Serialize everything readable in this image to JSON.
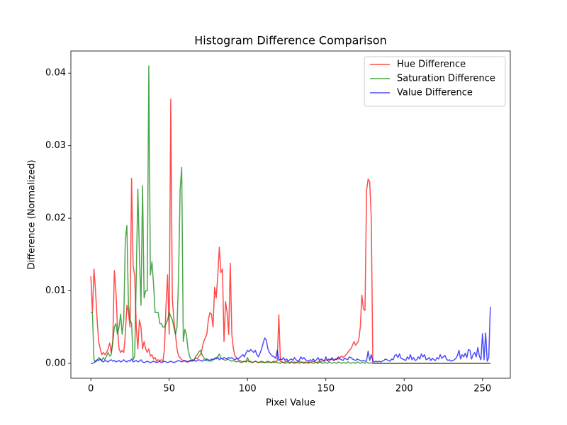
{
  "chart_data": {
    "type": "line",
    "title": "Histogram Difference Comparison",
    "xlabel": "Pixel Value",
    "ylabel": "Difference (Normalized)",
    "x": [
      0,
      1,
      2,
      3,
      4,
      5,
      6,
      7,
      8,
      9,
      10,
      11,
      12,
      13,
      14,
      15,
      16,
      17,
      18,
      19,
      20,
      21,
      22,
      23,
      24,
      25,
      26,
      27,
      28,
      29,
      30,
      31,
      32,
      33,
      34,
      35,
      36,
      37,
      38,
      39,
      40,
      41,
      42,
      43,
      44,
      45,
      46,
      47,
      48,
      49,
      50,
      51,
      52,
      53,
      54,
      55,
      56,
      57,
      58,
      59,
      60,
      61,
      62,
      63,
      64,
      65,
      66,
      67,
      68,
      69,
      70,
      71,
      72,
      73,
      74,
      75,
      76,
      77,
      78,
      79,
      80,
      81,
      82,
      83,
      84,
      85,
      86,
      87,
      88,
      89,
      90,
      91,
      92,
      93,
      94,
      95,
      96,
      97,
      98,
      99,
      100,
      101,
      102,
      103,
      104,
      105,
      106,
      107,
      108,
      109,
      110,
      111,
      112,
      113,
      114,
      115,
      116,
      117,
      118,
      119,
      120,
      121,
      122,
      123,
      124,
      125,
      126,
      127,
      128,
      129,
      130,
      131,
      132,
      133,
      134,
      135,
      136,
      137,
      138,
      139,
      140,
      141,
      142,
      143,
      144,
      145,
      146,
      147,
      148,
      149,
      150,
      151,
      152,
      153,
      154,
      155,
      156,
      157,
      158,
      159,
      160,
      161,
      162,
      163,
      164,
      165,
      166,
      167,
      168,
      169,
      170,
      171,
      172,
      173,
      174,
      175,
      176,
      177,
      178,
      179,
      180,
      181,
      182,
      183,
      184,
      185,
      186,
      187,
      188,
      189,
      190,
      191,
      192,
      193,
      194,
      195,
      196,
      197,
      198,
      199,
      200,
      201,
      202,
      203,
      204,
      205,
      206,
      207,
      208,
      209,
      210,
      211,
      212,
      213,
      214,
      215,
      216,
      217,
      218,
      219,
      220,
      221,
      222,
      223,
      224,
      225,
      226,
      227,
      228,
      229,
      230,
      231,
      232,
      233,
      234,
      235,
      236,
      237,
      238,
      239,
      240,
      241,
      242,
      243,
      244,
      245,
      246,
      247,
      248,
      249,
      250,
      251,
      252,
      253,
      254,
      255
    ],
    "series": [
      {
        "name": "Hue Difference",
        "color": "#ff0000",
        "alpha": 0.7,
        "values": [
          0.012,
          0.007,
          0.013,
          0.01,
          0.006,
          0.003,
          0.002,
          0.0012,
          0.0015,
          0.0012,
          0.0015,
          0.002,
          0.0028,
          0.0015,
          0.003,
          0.0128,
          0.01,
          0.005,
          0.002,
          0.0015,
          0.0018,
          0.0015,
          0.004,
          0.008,
          0.007,
          0.005,
          0.0255,
          0.0135,
          0.012,
          0.005,
          0.002,
          0.006,
          0.005,
          0.002,
          0.003,
          0.002,
          0.0015,
          0.002,
          0.001,
          0.0012,
          0.0006,
          0.0008,
          0.0003,
          0.0005,
          0.0004,
          0.0005,
          0.0003,
          0.002,
          0.008,
          0.0122,
          0.004,
          0.0364,
          0.009,
          0.006,
          0.004,
          0.002,
          0.001,
          0.0008,
          0.0005,
          0.0004,
          0.0003,
          0.0002,
          0.0002,
          0.0003,
          0.0004,
          0.0003,
          0.0005,
          0.0008,
          0.0006,
          0.001,
          0.0012,
          0.002,
          0.003,
          0.0035,
          0.004,
          0.006,
          0.007,
          0.0068,
          0.005,
          0.0105,
          0.009,
          0.012,
          0.016,
          0.0125,
          0.013,
          0.003,
          0.0085,
          0.007,
          0.004,
          0.0138,
          0.004,
          0.002,
          0.001,
          0.0008,
          0.0005,
          0.0004,
          0.0003,
          0.0002,
          0.0003,
          0.0002,
          0.0004,
          0.0002,
          0.0003,
          0.0001,
          0.0002,
          0.0003,
          0.0002,
          0.0001,
          0.0002,
          0.0003,
          0.0002,
          0.0001,
          0.0002,
          0.0003,
          0.0002,
          0.0001,
          0.0002,
          0.0003,
          0.0002,
          0.0004,
          0.0067,
          0.0003,
          0.0002,
          0.0001,
          0.0002,
          0.0003,
          0.0002,
          0.0001,
          0.0002,
          0.0001,
          0.0002,
          0.0001,
          0.0002,
          0.0003,
          0.0001,
          0.0002,
          0.0001,
          0.0002,
          0.0001,
          0.0002,
          0.0001,
          0.0002,
          0.0003,
          0.0002,
          0.0001,
          0.0002,
          0.0003,
          0.0002,
          0.0004,
          0.0003,
          0.0005,
          0.0004,
          0.0003,
          0.0005,
          0.0006,
          0.0004,
          0.0005,
          0.0007,
          0.0006,
          0.0008,
          0.001,
          0.0008,
          0.001,
          0.0012,
          0.0015,
          0.0018,
          0.002,
          0.0025,
          0.003,
          0.0025,
          0.0028,
          0.0032,
          0.005,
          0.0094,
          0.0075,
          0.0073,
          0.0238,
          0.0254,
          0.025,
          0.02,
          0,
          0,
          0,
          0,
          0,
          0,
          0,
          0,
          0,
          0,
          0,
          0,
          0,
          0,
          0,
          0,
          0,
          0,
          0,
          0,
          0,
          0,
          0,
          0,
          0,
          0,
          0,
          0,
          0,
          0,
          0,
          0,
          0,
          0,
          0,
          0,
          0,
          0,
          0,
          0,
          0,
          0,
          0,
          0,
          0,
          0,
          0,
          0,
          0,
          0,
          0,
          0,
          0,
          0,
          0,
          0,
          0,
          0,
          0,
          0,
          0,
          0,
          0,
          0,
          0,
          0,
          0,
          0,
          0,
          0,
          0,
          0,
          0,
          0,
          0,
          0
        ]
      },
      {
        "name": "Saturation Difference",
        "color": "#008000",
        "alpha": 0.7,
        "values": [
          0.007,
          0.007,
          0.0005,
          0.0002,
          0.0004,
          0.0008,
          0.0006,
          0.0004,
          0.0008,
          0.0005,
          0.001,
          0.0015,
          0.001,
          0.0012,
          0.003,
          0.005,
          0.0055,
          0.004,
          0.005,
          0.0068,
          0.004,
          0.006,
          0.017,
          0.019,
          0.008,
          0.006,
          0.0055,
          0.0005,
          0.001,
          0.012,
          0.024,
          0.015,
          0.008,
          0.0245,
          0.009,
          0.01,
          0.01,
          0.041,
          0.0122,
          0.014,
          0.011,
          0.007,
          0.007,
          0.007,
          0.0055,
          0.0055,
          0.005,
          0.005,
          0.0055,
          0.006,
          0.007,
          0.0065,
          0.006,
          0.005,
          0.004,
          0.005,
          0.012,
          0.024,
          0.027,
          0.003,
          0.0047,
          0.004,
          0.002,
          0.001,
          0.0005,
          0.0004,
          0.0005,
          0.001,
          0.0012,
          0.0016,
          0.0018,
          0.0012,
          0.0008,
          0.0006,
          0.0004,
          0.0003,
          0.0004,
          0.0003,
          0.0005,
          0.0006,
          0.0008,
          0.0009,
          0.0013,
          0.0007,
          0.0006,
          0.0005,
          0.0004,
          0.0006,
          0.0005,
          0.0004,
          0.0003,
          0.0004,
          0.0003,
          0.0002,
          0.0003,
          0.0002,
          0.0001,
          0.0002,
          0.0003,
          0.0002,
          0.0008,
          0.0003,
          0.0002,
          0.0001,
          0.0002,
          0.0003,
          0.0002,
          0.0001,
          0.0002,
          0.0001,
          0.0002,
          0.0001,
          0.0002,
          0.0001,
          0.0002,
          0.0001,
          0.0002,
          0.0001,
          0.0002,
          0.0001,
          0.0001,
          0,
          0.0002,
          0.0001,
          0,
          0.0001,
          0.0001,
          0,
          0.0002,
          0.0001,
          0,
          0.0001,
          0.0001,
          0,
          0.0002,
          0.0001,
          0,
          0.0001,
          0.0001,
          0,
          0.0002,
          0.0001,
          0,
          0.0001,
          0.0001,
          0,
          0.0002,
          0.0001,
          0,
          0.0001,
          0.0001,
          0,
          0.0002,
          0.0001,
          0,
          0.0001,
          0.0001,
          0,
          0.0002,
          0.0001,
          0,
          0.0001,
          0.0001,
          0,
          0.0002,
          0.0001,
          0,
          0.0001,
          0.0001,
          0,
          0.0002,
          0.0001,
          0,
          0.0001,
          0.0001,
          0,
          0.0002,
          0.0001,
          0,
          0.0001,
          0,
          0,
          0,
          0,
          0,
          0,
          0,
          0,
          0,
          0,
          0,
          0,
          0,
          0,
          0,
          0,
          0,
          0,
          0,
          0,
          0,
          0,
          0,
          0,
          0,
          0,
          0,
          0,
          0,
          0,
          0,
          0,
          0,
          0,
          0,
          0,
          0,
          0,
          0,
          0,
          0,
          0,
          0,
          0,
          0,
          0,
          0,
          0,
          0,
          0,
          0,
          0,
          0,
          0,
          0,
          0,
          0,
          0,
          0,
          0,
          0,
          0,
          0,
          0,
          0,
          0,
          0,
          0,
          0,
          0,
          0,
          0,
          0,
          0,
          0,
          0
        ]
      },
      {
        "name": "Value Difference",
        "color": "#0000ff",
        "alpha": 0.7,
        "values": [
          0,
          0,
          0.0001,
          0.0003,
          0.0005,
          0.0004,
          0.0006,
          0.0003,
          0.0002,
          0.0004,
          0.0003,
          0.0002,
          0.0004,
          0.0005,
          0.0003,
          0.0004,
          0.0002,
          0.0003,
          0.0004,
          0.0002,
          0.0003,
          0.0005,
          0.0003,
          0.0002,
          0.0004,
          0.0003,
          0.0006,
          0.0002,
          0.0003,
          0.0004,
          0.0002,
          0.0003,
          0.0005,
          0.0002,
          0.0001,
          0.0002,
          0.0003,
          0.0002,
          0.0001,
          0.0002,
          0.0003,
          0.0002,
          0.0001,
          0.0002,
          0.0003,
          0.0001,
          0.0002,
          0.0003,
          0.0002,
          0.0001,
          0.0002,
          0.0003,
          0.0002,
          0.0001,
          0.0002,
          0.0003,
          0.0004,
          0.0003,
          0.0002,
          0.0003,
          0.0004,
          0.0003,
          0.0002,
          0.0004,
          0.0003,
          0.0005,
          0.0004,
          0.0003,
          0.0004,
          0.0005,
          0.0004,
          0.0003,
          0.0005,
          0.0004,
          0.0006,
          0.0005,
          0.0004,
          0.0006,
          0.0005,
          0.0007,
          0.0006,
          0.0008,
          0.0005,
          0.0007,
          0.0006,
          0.0008,
          0.0007,
          0.0006,
          0.0008,
          0.0007,
          0.0008,
          0.0006,
          0.0005,
          0.0007,
          0.0006,
          0.0008,
          0.001,
          0.0012,
          0.0009,
          0.0014,
          0.0018,
          0.0016,
          0.0019,
          0.0017,
          0.0015,
          0.0018,
          0.0012,
          0.0009,
          0.0014,
          0.002,
          0.0028,
          0.0035,
          0.0032,
          0.002,
          0.0015,
          0.0012,
          0.001,
          0.0009,
          0.0007,
          0.0018,
          0.0004,
          0.0006,
          0.0005,
          0.0008,
          0.0004,
          0.0006,
          0.0003,
          0.0005,
          0.0006,
          0.0004,
          0.0008,
          0.0005,
          0.0003,
          0.0004,
          0.0009,
          0.0006,
          0.0008,
          0.0005,
          0.0004,
          0.0003,
          0.0005,
          0.0004,
          0.0006,
          0.0003,
          0.0005,
          0.0008,
          0.0004,
          0.0006,
          0.0005,
          0.0003,
          0.0009,
          0.0004,
          0.0006,
          0.0005,
          0.0008,
          0.0004,
          0.0006,
          0.0005,
          0.0009,
          0.0006,
          0.0005,
          0.0004,
          0.0007,
          0.0006,
          0.0005,
          0.0009,
          0.0008,
          0.0006,
          0.0005,
          0.0004,
          0.0006,
          0.0005,
          0.0004,
          0.0003,
          0.0004,
          0.0003,
          0.0004,
          0.0017,
          0.0004,
          0.0012,
          0.0003,
          0.0002,
          0.0003,
          0.0002,
          0.0003,
          0.0002,
          0.0003,
          0.0004,
          0.0006,
          0.0005,
          0.0004,
          0.0003,
          0.0006,
          0.0005,
          0.0011,
          0.0012,
          0.0008,
          0.0013,
          0.0007,
          0.0006,
          0.0005,
          0.0004,
          0.0009,
          0.0006,
          0.0012,
          0.0005,
          0.0008,
          0.0004,
          0.0005,
          0.0009,
          0.0006,
          0.0013,
          0.0009,
          0.0012,
          0.0005,
          0.0006,
          0.0008,
          0.0004,
          0.0007,
          0.0005,
          0.0004,
          0.0008,
          0.0006,
          0.0012,
          0.0007,
          0.0009,
          0.0011,
          0.0006,
          0.0004,
          0.0005,
          0.0003,
          0.0004,
          0.0005,
          0.0007,
          0.0011,
          0.0018,
          0.0006,
          0.0012,
          0.0009,
          0.0014,
          0.0008,
          0.0019,
          0.0018,
          0.0006,
          0.0012,
          0.0015,
          0.0009,
          0.0022,
          0.001,
          0.0005,
          0.0041,
          0.0005,
          0.0042,
          0.0003,
          0.0008,
          0.0078
        ]
      }
    ],
    "xlim": [
      -12.75,
      267.75
    ],
    "ylim": [
      -0.00205,
      0.04305
    ],
    "xticks": [
      0,
      50,
      100,
      150,
      200,
      250
    ],
    "yticks": [
      {
        "value": 0,
        "label": "0.00"
      },
      {
        "value": 0.01,
        "label": "0.01"
      },
      {
        "value": 0.02,
        "label": "0.02"
      },
      {
        "value": 0.03,
        "label": "0.03"
      },
      {
        "value": 0.04,
        "label": "0.04"
      }
    ],
    "legend": "upper right"
  }
}
